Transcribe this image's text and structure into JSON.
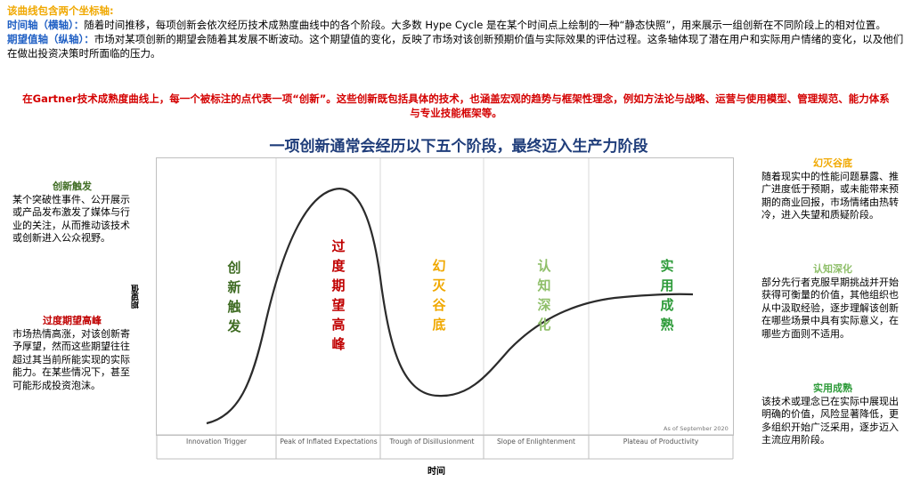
{
  "intro": {
    "heading": "该曲线包含两个坐标轴:",
    "time_axis_label": "时间轴（横轴）：",
    "time_axis_text": "随着时间推移，每项创新会依次经历技术成熟度曲线中的各个阶段。大多数 Hype Cycle 是在某个时间点上绘制的一种“静态快照”，用来展示一组创新在不同阶段上的相对位置。",
    "expect_axis_label": "期望值轴（纵轴）：",
    "expect_axis_text": "市场对某项创新的期望会随着其发展不断波动。这个期望值的变化，反映了市场对该创新预期价值与实际效果的评估过程。这条轴体现了潜在用户和实际用户情绪的变化，以及他们在做出投资决策时所面临的压力。"
  },
  "red_note": "在Gartner技术成熟度曲线上，每一个被标注的点代表一项“创新”。这些创新既包括具体的技术，也涵盖宏观的趋势与框架性理念，例如方法论与战略、运营与使用模型、管理规范、能力体系与专业技能框架等。",
  "main_title": "一项创新通常会经历以下五个阶段，最终迈入生产力阶段",
  "left_notes": [
    {
      "title": "创新触发",
      "text": "某个突破性事件、公开展示或产品发布激发了媒体与行业的关注，从而推动该技术或创新进入公众视野。",
      "color": "#3e6b22"
    },
    {
      "title": "过度期望高峰",
      "text": "市场热情高涨，对该创新寄予厚望，然而这些期望往往超过其当前所能实现的实际能力。在某些情况下，甚至可能形成投资泡沫。",
      "color": "#c00000"
    }
  ],
  "right_notes": [
    {
      "title": "幻灭谷底",
      "text": "随着现实中的性能问题暴露、推广进度低于预期，或未能带来预期的商业回报，市场情绪由热转冷，进入失望和质疑阶段。",
      "color": "#f0a800"
    },
    {
      "title": "认知深化",
      "text": "部分先行者克服早期挑战并开始获得可衡量的价值，其他组织也从中汲取经验，逐步理解该创新在哪些场景中具有实际意义，在哪些方面则不适用。",
      "color": "#8fbf6a"
    },
    {
      "title": "实用成熟",
      "text": "该技术或理念已在实际中展现出明确的价值，风险显著降低，更多组织开始广泛采用，逐步迈入主流应用阶段。",
      "color": "#2e9b3a"
    }
  ],
  "phases": [
    {
      "label": "创新触发",
      "color": "#3e6b22"
    },
    {
      "label": "过度期望高峰",
      "color": "#c00000"
    },
    {
      "label": "幻灭谷底",
      "color": "#f0a800"
    },
    {
      "label": "认知深化",
      "color": "#8fbf6a"
    },
    {
      "label": "实用成熟",
      "color": "#2e9b3a"
    }
  ],
  "x_categories": [
    "Innovation Trigger",
    "Peak of Inflated Expectations",
    "Trough of Disillusionment",
    "Slope of Enlightenment",
    "Plateau of Productivity"
  ],
  "x_axis_label": "时间",
  "y_axis_label": "期望值",
  "as_of": "As of September 2020"
}
